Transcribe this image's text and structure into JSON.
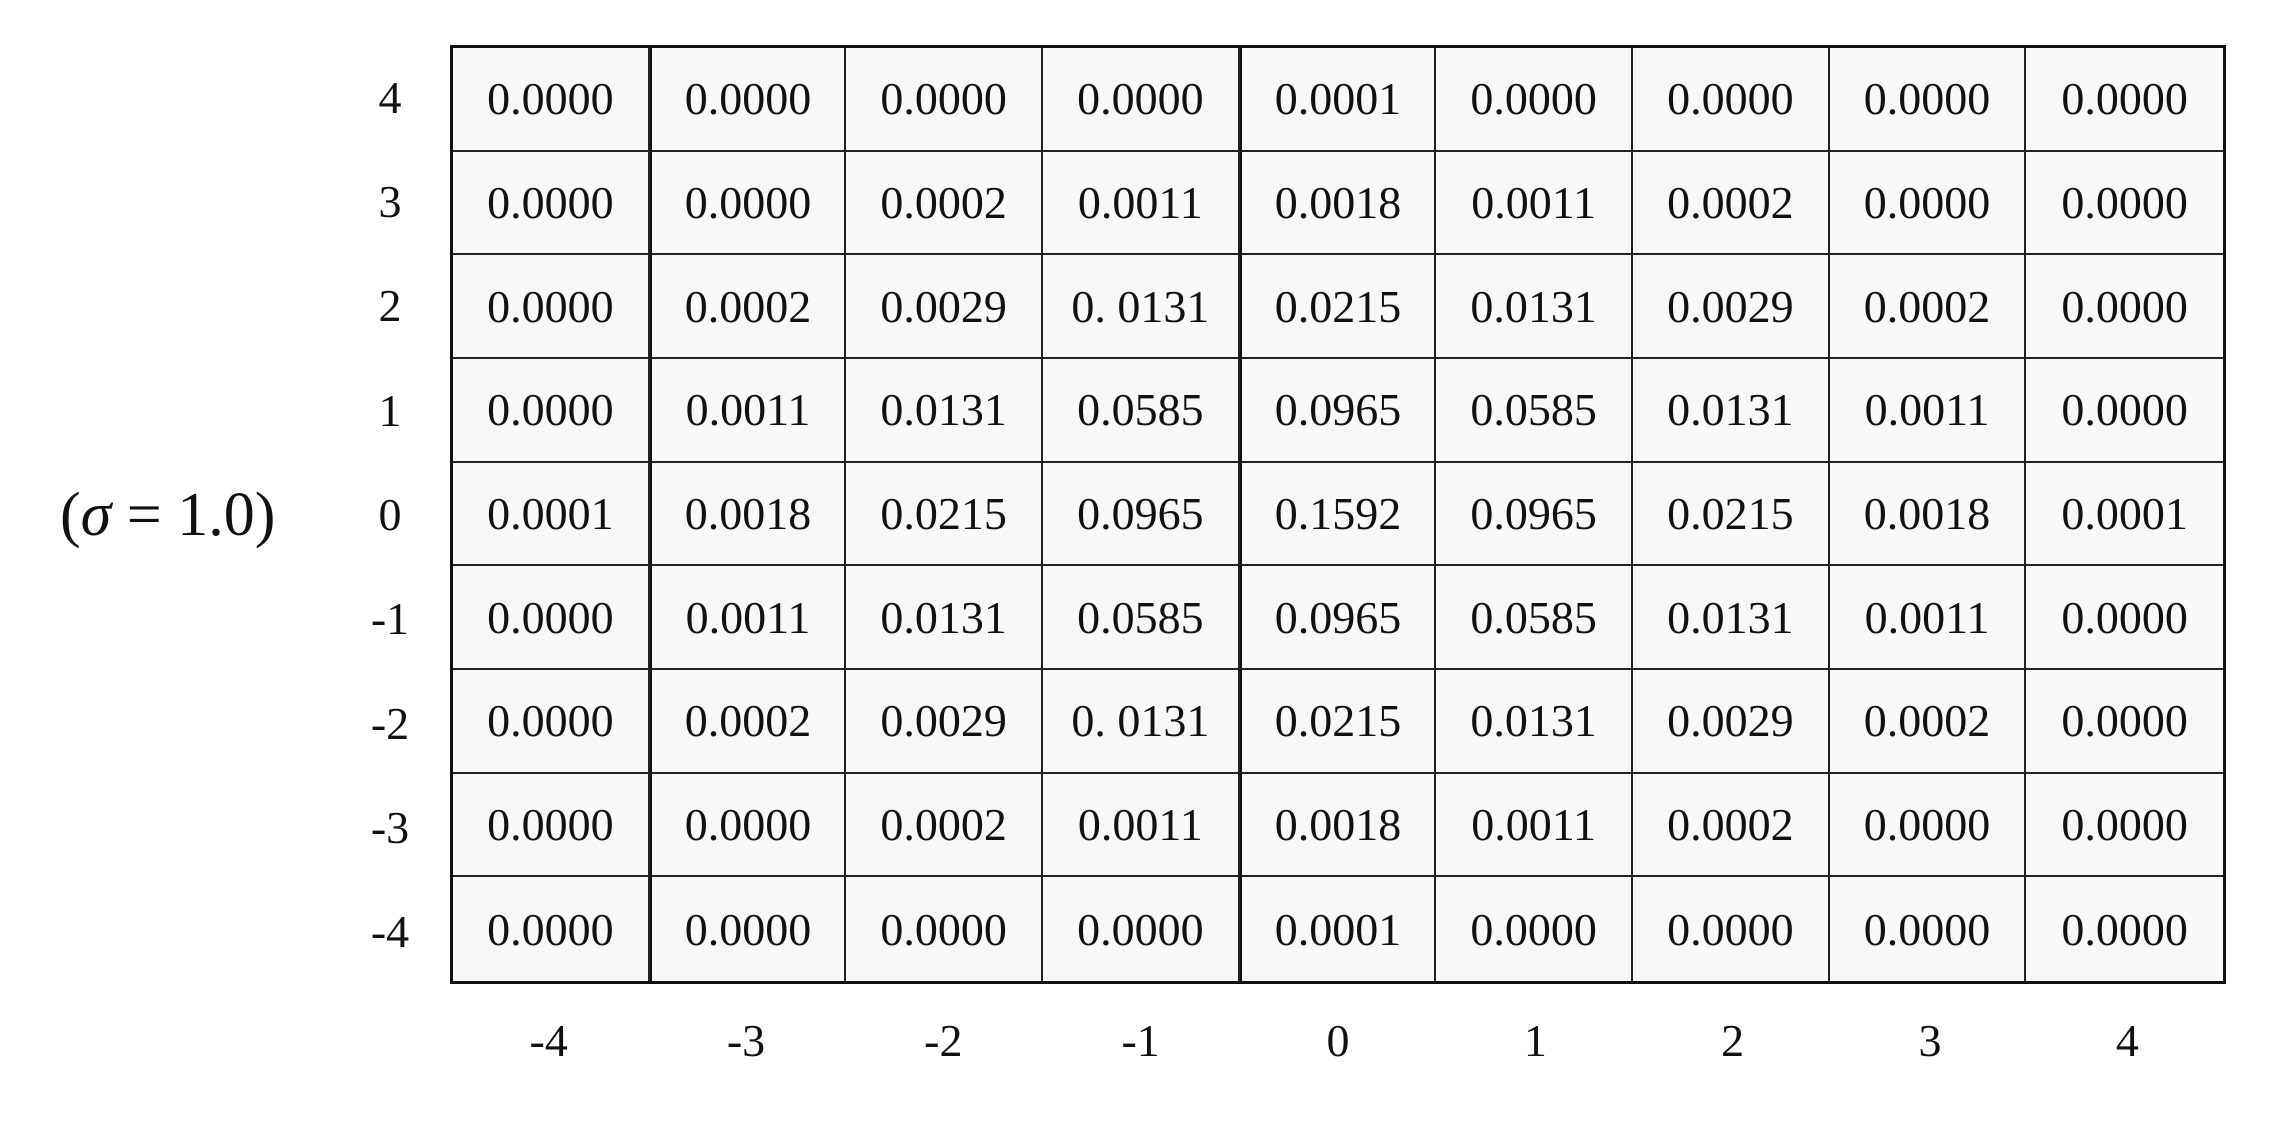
{
  "chart_data": {
    "type": "table",
    "side_label": {
      "open": "(",
      "symbol": "σ",
      "rest": " = 1.0)"
    },
    "row_labels": [
      "4",
      "3",
      "2",
      "1",
      "0",
      "-1",
      "-2",
      "-3",
      "-4"
    ],
    "col_labels": [
      "-4",
      "-3",
      "-2",
      "-1",
      "0",
      "1",
      "2",
      "3",
      "4"
    ],
    "rows": [
      [
        "0.0000",
        "0.0000",
        "0.0000",
        "0.0000",
        "0.0001",
        "0.0000",
        "0.0000",
        "0.0000",
        "0.0000"
      ],
      [
        "0.0000",
        "0.0000",
        "0.0002",
        "0.0011",
        "0.0018",
        "0.0011",
        "0.0002",
        "0.0000",
        "0.0000"
      ],
      [
        "0.0000",
        "0.0002",
        "0.0029",
        "0. 0131",
        "0.0215",
        "0.0131",
        "0.0029",
        "0.0002",
        "0.0000"
      ],
      [
        "0.0000",
        "0.0011",
        "0.0131",
        "0.0585",
        "0.0965",
        "0.0585",
        "0.0131",
        "0.0011",
        "0.0000"
      ],
      [
        "0.0001",
        "0.0018",
        "0.0215",
        "0.0965",
        "0.1592",
        "0.0965",
        "0.0215",
        "0.0018",
        "0.0001"
      ],
      [
        "0.0000",
        "0.0011",
        "0.0131",
        "0.0585",
        "0.0965",
        "0.0585",
        "0.0131",
        "0.0011",
        "0.0000"
      ],
      [
        "0.0000",
        "0.0002",
        "0.0029",
        "0. 0131",
        "0.0215",
        "0.0131",
        "0.0029",
        "0.0002",
        "0.0000"
      ],
      [
        "0.0000",
        "0.0000",
        "0.0002",
        "0.0011",
        "0.0018",
        "0.0011",
        "0.0002",
        "0.0000",
        "0.0000"
      ],
      [
        "0.0000",
        "0.0000",
        "0.0000",
        "0.0000",
        "0.0001",
        "0.0000",
        "0.0000",
        "0.0000",
        "0.0000"
      ]
    ]
  }
}
